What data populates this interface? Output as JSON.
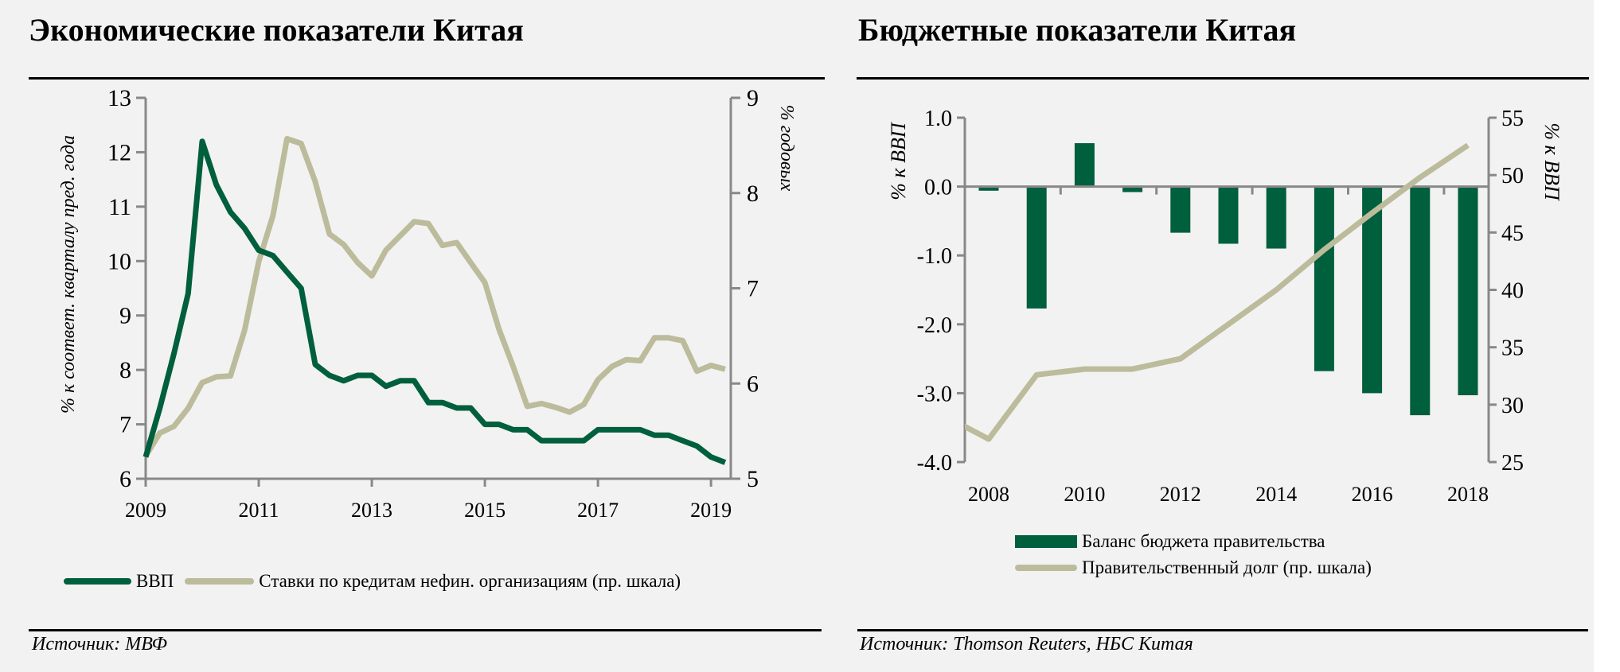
{
  "colors": {
    "green": "#005f3c",
    "beige": "#bcbb9b",
    "axis": "#888888"
  },
  "left": {
    "title": "Экономические показатели Китая",
    "source": "Источник: МВФ",
    "legend": [
      "ВВП",
      "Ставки по кредитам нефин. организациям (пр. шкала)"
    ],
    "chart_data": {
      "type": "line",
      "title": "Экономические показатели Китая",
      "ylabel": "% к соответ. кварталу пред. года",
      "y2label": "% годовых",
      "ylim": [
        6,
        13
      ],
      "y2lim": [
        5,
        9
      ],
      "xlim": [
        2009,
        2019.35
      ],
      "yticks": [
        "6",
        "7",
        "8",
        "9",
        "10",
        "11",
        "12",
        "13"
      ],
      "y2ticks": [
        "5",
        "6",
        "7",
        "8",
        "9"
      ],
      "xticks": [
        "2009",
        "2011",
        "2013",
        "2015",
        "2017",
        "2019"
      ],
      "x_start": 2009,
      "x_step": 0.25,
      "series": [
        {
          "name": "ВВП",
          "axis": "left",
          "values": [
            6.4,
            7.3,
            8.3,
            9.4,
            12.2,
            11.4,
            10.9,
            10.6,
            10.2,
            10.1,
            9.8,
            9.5,
            8.1,
            7.9,
            7.8,
            7.9,
            7.9,
            7.7,
            7.8,
            7.8,
            7.4,
            7.4,
            7.3,
            7.3,
            7.0,
            7.0,
            6.9,
            6.9,
            6.7,
            6.7,
            6.7,
            6.7,
            6.9,
            6.9,
            6.9,
            6.9,
            6.8,
            6.8,
            6.7,
            6.6,
            6.4,
            6.3
          ]
        },
        {
          "name": "Ставки по кредитам нефин. организациям (пр. шкала)",
          "axis": "right",
          "values": [
            5.24,
            5.48,
            5.55,
            5.74,
            6.01,
            6.07,
            6.08,
            6.56,
            7.28,
            7.76,
            8.57,
            8.52,
            8.12,
            7.57,
            7.46,
            7.27,
            7.13,
            7.4,
            7.55,
            7.7,
            7.68,
            7.45,
            7.48,
            7.27,
            7.06,
            6.57,
            6.18,
            5.76,
            5.79,
            5.75,
            5.7,
            5.78,
            6.04,
            6.18,
            6.25,
            6.24,
            6.48,
            6.48,
            6.45,
            6.13,
            6.19,
            6.15
          ]
        }
      ]
    }
  },
  "right": {
    "title": "Бюджетные показатели Китая",
    "source": "Источник: Thomson Reuters, НБС Китая",
    "legend": [
      "Баланс бюджета правительства",
      "Правительственный долг (пр. шкала)"
    ],
    "chart_data": {
      "type": "bar",
      "title": "Бюджетные показатели Китая",
      "ylabel": "% к ВВП",
      "y2label": "% к ВВП",
      "ylim": [
        -4,
        1
      ],
      "y2lim": [
        25,
        55
      ],
      "yticks": [
        "-4.0",
        "-3.0",
        "-2.0",
        "-1.0",
        "0.0",
        "1.0"
      ],
      "y2ticks": [
        "25",
        "30",
        "35",
        "40",
        "45",
        "50",
        "55"
      ],
      "xticks": [
        "2008",
        "2010",
        "2012",
        "2014",
        "2016",
        "2018"
      ],
      "categories": [
        2008,
        2009,
        2010,
        2011,
        2012,
        2013,
        2014,
        2015,
        2016,
        2017,
        2018
      ],
      "series": [
        {
          "name": "Баланс бюджета правительства",
          "type": "bar",
          "values": [
            -0.06,
            -1.77,
            0.63,
            -0.08,
            -0.67,
            -0.83,
            -0.9,
            -2.68,
            -3.0,
            -3.32,
            -3.03
          ]
        },
        {
          "name": "Правительственный долг (пр. шкала)",
          "type": "line",
          "x": [
            2007,
            2008,
            2009,
            2010,
            2011,
            2012,
            2013,
            2014,
            2015,
            2016,
            2017,
            2018
          ],
          "values": [
            29.2,
            27.0,
            32.6,
            33.1,
            33.1,
            34.0,
            37.0,
            40.0,
            43.5,
            46.7,
            49.8,
            52.6
          ]
        }
      ]
    }
  }
}
